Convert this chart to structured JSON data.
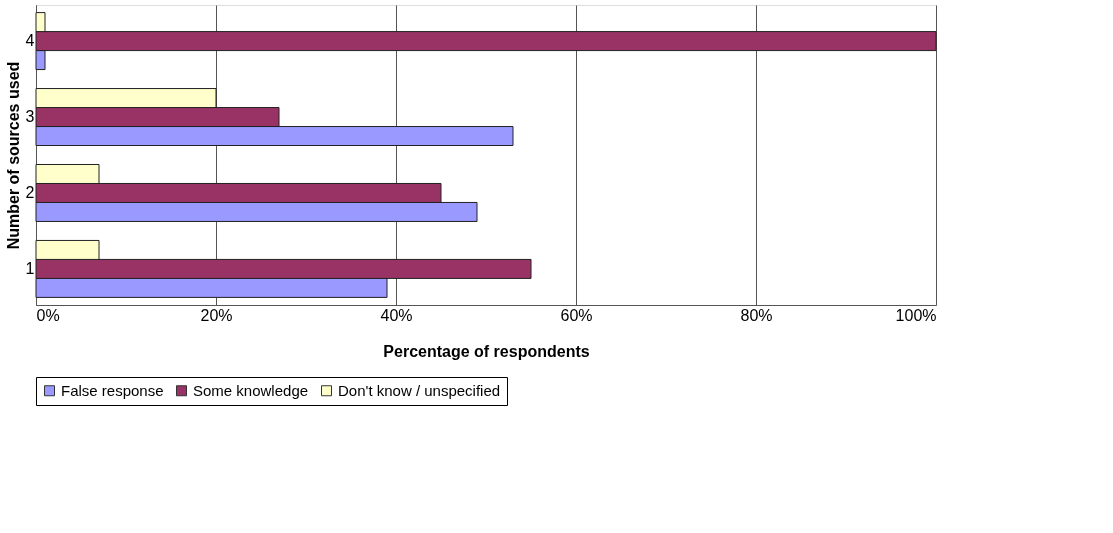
{
  "chart_data": {
    "type": "bar",
    "orientation": "horizontal",
    "xlabel": "Percentage of respondents",
    "ylabel": "Number of sources used",
    "categories": [
      "4",
      "3",
      "2",
      "1"
    ],
    "series": [
      {
        "name": "False response",
        "color": "#9999ff",
        "values": [
          1,
          53,
          49,
          39
        ]
      },
      {
        "name": "Some knowledge",
        "color": "#993366",
        "values": [
          100,
          27,
          45,
          55
        ]
      },
      {
        "name": "Don't know / unspecified",
        "color": "#ffffcc",
        "values": [
          1,
          20,
          7,
          7
        ]
      }
    ],
    "xlim": [
      0,
      100
    ],
    "xticks": [
      {
        "value": 0,
        "label": "0%"
      },
      {
        "value": 20,
        "label": "20%"
      },
      {
        "value": 40,
        "label": "40%"
      },
      {
        "value": 60,
        "label": "60%"
      },
      {
        "value": 80,
        "label": "80%"
      },
      {
        "value": 100,
        "label": "100%"
      }
    ],
    "grid": "x",
    "legend": "bottom"
  }
}
